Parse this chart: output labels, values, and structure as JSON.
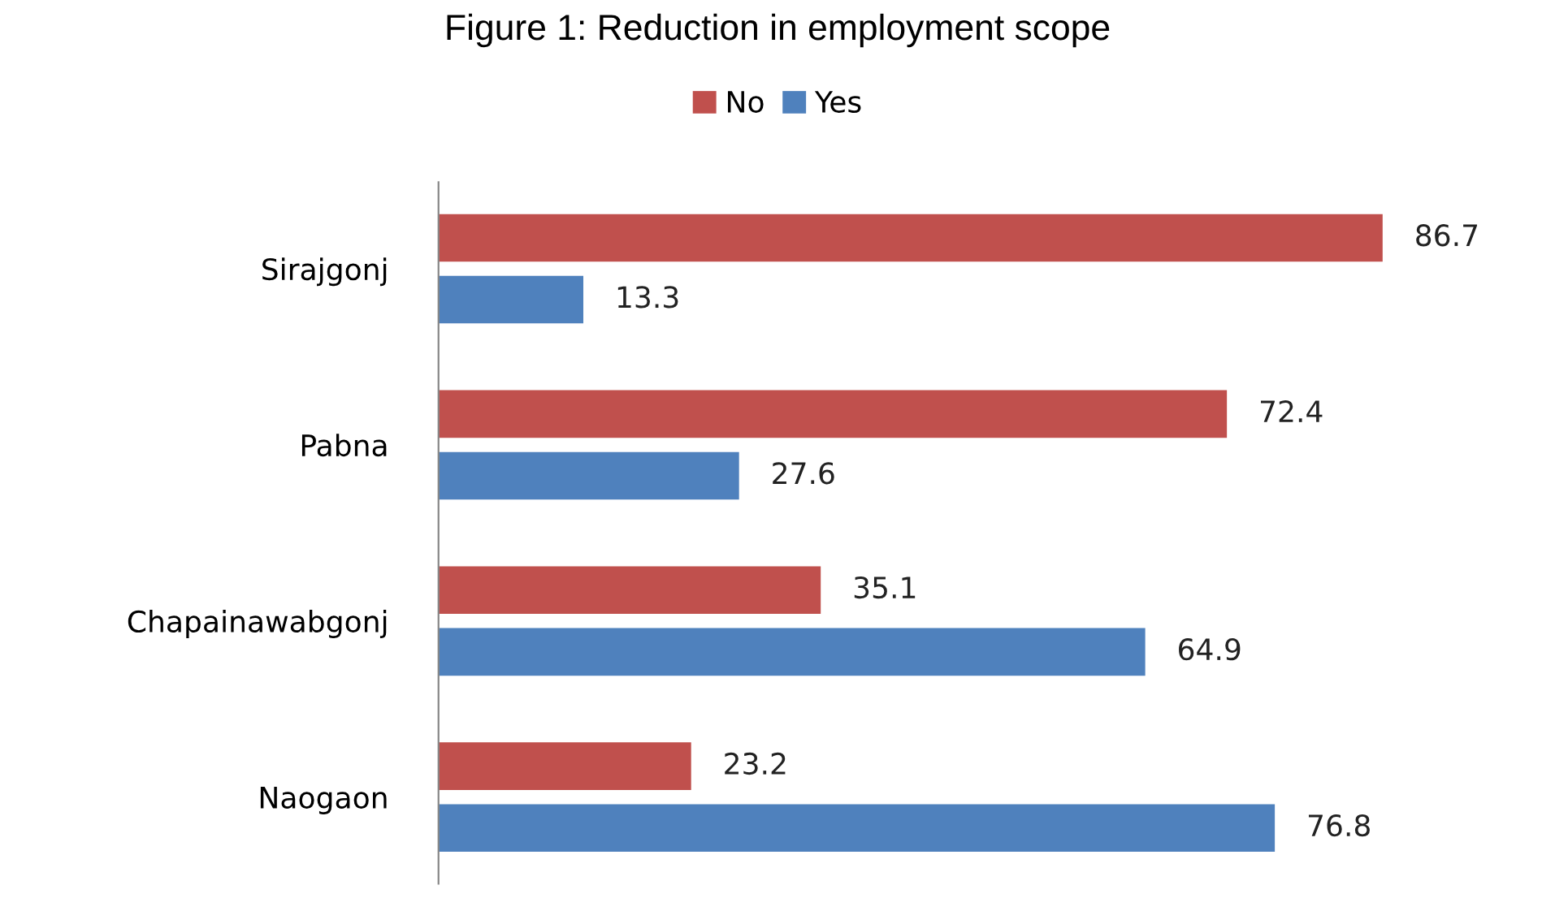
{
  "chart_data": {
    "type": "bar",
    "orientation": "horizontal",
    "title": "Figure 1: Reduction in employment scope",
    "categories": [
      "Sirajgonj",
      "Pabna",
      "Chapainawabgonj",
      "Naogaon"
    ],
    "series": [
      {
        "name": "No",
        "color": "#c0504d",
        "values": [
          86.7,
          72.4,
          35.1,
          23.2
        ]
      },
      {
        "name": "Yes",
        "color": "#4f81bd",
        "values": [
          13.3,
          27.6,
          64.9,
          76.8
        ]
      }
    ],
    "data_labels": true,
    "legend": "top",
    "grid": false,
    "tick_labels": "y"
  }
}
